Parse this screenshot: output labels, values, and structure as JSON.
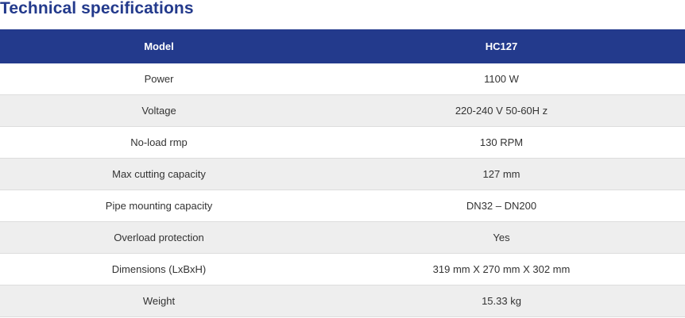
{
  "page": {
    "title": "Technical specifications"
  },
  "table": {
    "header": {
      "label": "Model",
      "value": "HC127"
    },
    "rows": [
      {
        "label": "Power",
        "value": "1100 W"
      },
      {
        "label": "Voltage",
        "value": "220-240 V 50-60H z"
      },
      {
        "label": "No-load rmp",
        "value": "130 RPM"
      },
      {
        "label": "Max cutting capacity",
        "value": "127 mm"
      },
      {
        "label": "Pipe mounting capacity",
        "value": "DN32 – DN200"
      },
      {
        "label": "Overload protection",
        "value": "Yes"
      },
      {
        "label": "Dimensions (LxBxH)",
        "value": "319 mm X 270 mm X 302 mm"
      },
      {
        "label": "Weight",
        "value": "15.33 kg"
      }
    ]
  },
  "colors": {
    "accent": "#233a8c",
    "row_alt": "#eeeeee",
    "text": "#333333"
  }
}
